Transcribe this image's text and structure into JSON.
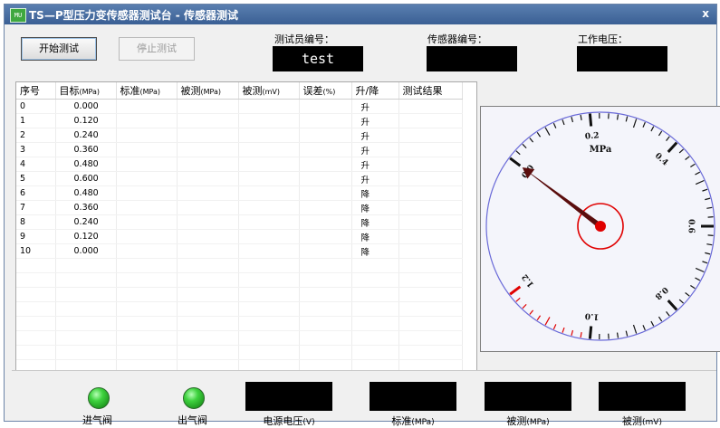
{
  "window": {
    "icon_text": "MU",
    "title": "TS—P型压力变传感器测试台 - 传感器测试",
    "close_label": "x"
  },
  "toolbar": {
    "start_label": "开始测试",
    "stop_label": "停止测试"
  },
  "fields": {
    "tester_id": {
      "label": "测试员编号：",
      "value": "test"
    },
    "sensor_id": {
      "label": "传感器编号：",
      "value": ""
    },
    "work_voltage": {
      "label": "工作电压：",
      "value": ""
    }
  },
  "table": {
    "headers": [
      {
        "text": "序号",
        "unit": ""
      },
      {
        "text": "目标",
        "unit": "(MPa)"
      },
      {
        "text": "标准",
        "unit": "(MPa)"
      },
      {
        "text": "被测",
        "unit": "(MPa)"
      },
      {
        "text": "被测",
        "unit": "(mV)"
      },
      {
        "text": "误差",
        "unit": "(%)"
      },
      {
        "text": "升/降",
        "unit": ""
      },
      {
        "text": "测试结果",
        "unit": ""
      }
    ],
    "rows": [
      {
        "idx": "0",
        "target": "0.000",
        "direction": "升"
      },
      {
        "idx": "1",
        "target": "0.120",
        "direction": "升"
      },
      {
        "idx": "2",
        "target": "0.240",
        "direction": "升"
      },
      {
        "idx": "3",
        "target": "0.360",
        "direction": "升"
      },
      {
        "idx": "4",
        "target": "0.480",
        "direction": "升"
      },
      {
        "idx": "5",
        "target": "0.600",
        "direction": "升"
      },
      {
        "idx": "6",
        "target": "0.480",
        "direction": "降"
      },
      {
        "idx": "7",
        "target": "0.360",
        "direction": "降"
      },
      {
        "idx": "8",
        "target": "0.240",
        "direction": "降"
      },
      {
        "idx": "9",
        "target": "0.120",
        "direction": "降"
      },
      {
        "idx": "10",
        "target": "0.000",
        "direction": "降"
      }
    ],
    "empty_rows": 8
  },
  "gauge": {
    "unit": "MPa",
    "min": 0,
    "max": 1.2,
    "major_labels": [
      "0.0",
      "0.2",
      "0.4",
      "0.6",
      "0.8",
      "1.0",
      "1.2"
    ],
    "value": 0.0,
    "colors": {
      "needle": "#5a0d0d",
      "hub": "#e00000",
      "ring": "#e00000",
      "scale": "#6a6ad8",
      "redzone": "#e00000"
    }
  },
  "status": {
    "inlet_valve": "进气阀",
    "outlet_valve": "出气阀",
    "supply_voltage": {
      "text": "电源电压",
      "unit": "(V)"
    },
    "standard": {
      "text": "标准",
      "unit": "(MPa)"
    },
    "measured_mpa": {
      "text": "被测",
      "unit": "(MPa)"
    },
    "measured_mv": {
      "text": "被测",
      "unit": "(mV)"
    }
  }
}
